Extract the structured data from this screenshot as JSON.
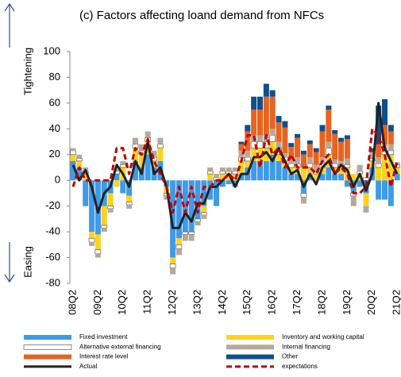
{
  "chart_data": {
    "type": "stacked-bar-line",
    "title": "(c) Factors affecting loand demand from NFCs",
    "annotations": [
      "Tightening",
      "Easing"
    ],
    "categories": [
      "08Q2",
      null,
      null,
      null,
      "09Q2",
      null,
      null,
      null,
      "10Q2",
      null,
      null,
      null,
      "11Q2",
      null,
      null,
      null,
      "12Q2",
      null,
      null,
      null,
      "13Q2",
      null,
      null,
      null,
      "14Q2",
      null,
      null,
      null,
      "15Q2",
      null,
      null,
      null,
      "16Q2",
      null,
      null,
      null,
      "17Q2",
      null,
      null,
      null,
      "18Q2",
      null,
      null,
      null,
      "19Q2",
      null,
      null,
      null,
      "20Q2",
      null,
      null,
      null,
      "21Q2"
    ],
    "ylim": [
      -80,
      100
    ],
    "yticks": [
      -80,
      -60,
      -40,
      -20,
      0,
      20,
      40,
      60,
      80,
      100
    ],
    "grid": false,
    "legend_position": "bottom",
    "series": [
      {
        "name": "Fixed investment",
        "color": "#3d9be9",
        "values": [
          15,
          10,
          -20,
          -40,
          -42,
          -20,
          -10,
          5,
          -10,
          -12,
          15,
          10,
          20,
          10,
          15,
          -5,
          -60,
          -45,
          -40,
          -40,
          -30,
          -20,
          -15,
          -20,
          -5,
          -3,
          -5,
          5,
          10,
          15,
          15,
          15,
          20,
          15,
          10,
          5,
          5,
          -10,
          5,
          0,
          5,
          10,
          5,
          5,
          -5,
          -10,
          -5,
          -10,
          10,
          -15,
          -15,
          -20,
          5
        ]
      },
      {
        "name": "Inventory and working capital",
        "color": "#ffd21f",
        "values": [
          5,
          5,
          5,
          -5,
          -12,
          -15,
          -10,
          -5,
          10,
          -5,
          10,
          10,
          10,
          5,
          10,
          -5,
          -5,
          -5,
          0,
          0,
          0,
          -5,
          5,
          0,
          5,
          5,
          5,
          10,
          5,
          10,
          10,
          10,
          10,
          5,
          5,
          5,
          5,
          10,
          5,
          5,
          5,
          10,
          5,
          5,
          10,
          5,
          5,
          -10,
          5,
          10,
          20,
          20,
          5
        ]
      },
      {
        "name": "Alternative external financing",
        "color": "#ffffff",
        "values": [
          3,
          2,
          2,
          -3,
          -3,
          -2,
          -2,
          2,
          2,
          -2,
          3,
          3,
          3,
          3,
          3,
          -2,
          -3,
          -3,
          -2,
          -2,
          -2,
          -2,
          2,
          2,
          2,
          2,
          2,
          3,
          3,
          5,
          5,
          5,
          5,
          5,
          3,
          3,
          3,
          -3,
          3,
          2,
          3,
          5,
          3,
          2,
          2,
          -2,
          2,
          2,
          2,
          3,
          3,
          3,
          2
        ]
      },
      {
        "name": "Internal financing",
        "color": "#b5a99a",
        "values": [
          2,
          3,
          3,
          -3,
          -3,
          -3,
          -3,
          2,
          3,
          -3,
          5,
          5,
          5,
          5,
          5,
          -3,
          -5,
          -5,
          -5,
          -5,
          -3,
          -3,
          3,
          3,
          3,
          3,
          3,
          5,
          5,
          5,
          5,
          5,
          5,
          5,
          3,
          3,
          5,
          -5,
          5,
          5,
          5,
          5,
          3,
          3,
          5,
          -8,
          5,
          -5,
          5,
          5,
          5,
          5,
          2
        ]
      },
      {
        "name": "Interest rate level",
        "color": "#e8631f",
        "values": [
          0,
          0,
          0,
          0,
          0,
          0,
          0,
          0,
          0,
          0,
          0,
          0,
          0,
          0,
          0,
          0,
          0,
          0,
          0,
          0,
          0,
          0,
          0,
          0,
          0,
          0,
          0,
          5,
          15,
          20,
          20,
          30,
          25,
          15,
          20,
          10,
          15,
          10,
          10,
          10,
          20,
          25,
          20,
          15,
          15,
          0,
          0,
          0,
          0,
          10,
          15,
          10,
          0
        ]
      },
      {
        "name": "Other",
        "color": "#0e4f8c",
        "values": [
          0,
          0,
          0,
          0,
          0,
          0,
          0,
          0,
          0,
          0,
          0,
          0,
          0,
          0,
          0,
          0,
          0,
          0,
          0,
          0,
          0,
          0,
          0,
          0,
          0,
          0,
          0,
          2,
          5,
          10,
          10,
          10,
          5,
          5,
          5,
          3,
          3,
          3,
          3,
          3,
          5,
          3,
          3,
          3,
          3,
          0,
          0,
          0,
          3,
          30,
          20,
          5,
          0
        ]
      }
    ],
    "lines": [
      {
        "name": "Actual",
        "color": "#222222",
        "dashed": false,
        "values": [
          12,
          0,
          8,
          -5,
          -25,
          -10,
          -5,
          12,
          5,
          -5,
          15,
          5,
          30,
          5,
          10,
          -5,
          -37,
          -37,
          -25,
          -32,
          -18,
          -18,
          -5,
          -5,
          0,
          5,
          -5,
          5,
          5,
          18,
          18,
          22,
          15,
          25,
          15,
          5,
          8,
          -5,
          5,
          -3,
          10,
          15,
          5,
          12,
          8,
          -5,
          5,
          -8,
          5,
          60,
          25,
          15,
          5
        ]
      },
      {
        "name": "expectations",
        "color": "#c00000",
        "dashed": true,
        "values": [
          -5,
          10,
          0,
          0,
          0,
          0,
          0,
          25,
          25,
          5,
          25,
          20,
          32,
          15,
          5,
          -5,
          -25,
          -5,
          -25,
          -5,
          -25,
          -5,
          -5,
          0,
          0,
          5,
          0,
          15,
          35,
          35,
          10,
          35,
          20,
          25,
          10,
          20,
          10,
          10,
          10,
          5,
          15,
          20,
          5,
          10,
          5,
          -10,
          -10,
          -5,
          40,
          35,
          20,
          -5,
          15
        ]
      }
    ]
  }
}
